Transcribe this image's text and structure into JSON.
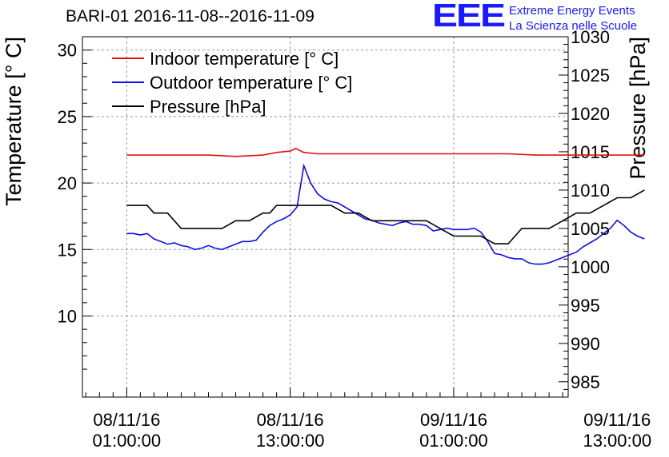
{
  "logo": {
    "mark": "EEE",
    "line1": "Extreme Energy Events",
    "line2": "La Scienza nelle Scuole"
  },
  "chart_data": {
    "type": "line",
    "title": "BARI-01 2016-11-08--2016-11-09",
    "ylabel": "Temperature [° C]",
    "y2label": "Pressure [hPa]",
    "ylim": [
      3.9,
      31.0
    ],
    "y2lim": [
      983.0,
      1030.0
    ],
    "xlim": [
      -3.25,
      32.4
    ],
    "xaxis_unit": "hours since 08/11/16 01:00:00",
    "yticks": [
      10,
      15,
      20,
      25,
      30
    ],
    "y2ticks": [
      985,
      990,
      995,
      1000,
      1005,
      1010,
      1015,
      1020,
      1025,
      1030
    ],
    "xticks": [
      {
        "x": 0,
        "line1": "08/11/16",
        "line2": "01:00:00"
      },
      {
        "x": 12,
        "line1": "08/11/16",
        "line2": "13:00:00"
      },
      {
        "x": 24,
        "line1": "09/11/16",
        "line2": "01:00:00"
      },
      {
        "x": 36,
        "line1": "09/11/16",
        "line2": "13:00:00"
      }
    ],
    "grid": true,
    "legend_position": "top-left",
    "series": [
      {
        "name": "Indoor temperature [° C]",
        "color": "#e01010",
        "axis": "left",
        "x": [
          0,
          2,
          4,
          6,
          8,
          10,
          11,
          12,
          12.4,
          13,
          14,
          16,
          18,
          20,
          22,
          24,
          26,
          28,
          30,
          32,
          34,
          36,
          38
        ],
        "y": [
          22.1,
          22.1,
          22.1,
          22.1,
          22.0,
          22.1,
          22.3,
          22.4,
          22.6,
          22.3,
          22.2,
          22.2,
          22.2,
          22.2,
          22.2,
          22.2,
          22.2,
          22.2,
          22.1,
          22.1,
          22.1,
          22.1,
          22.1
        ]
      },
      {
        "name": "Outdoor temperature [° C]",
        "color": "#1010e0",
        "axis": "left",
        "x": [
          0,
          0.5,
          1,
          1.5,
          2,
          2.5,
          3,
          3.5,
          4,
          4.5,
          5,
          5.5,
          6,
          6.5,
          7,
          7.5,
          8,
          8.5,
          9,
          9.5,
          10,
          10.5,
          11,
          11.5,
          12,
          12.5,
          13,
          13.5,
          14,
          14.5,
          15,
          15.5,
          16,
          16.5,
          17,
          17.5,
          18,
          18.5,
          19,
          19.5,
          20,
          20.5,
          21,
          21.5,
          22,
          22.5,
          23,
          23.5,
          24,
          24.5,
          25,
          25.5,
          26,
          26.5,
          27,
          27.5,
          28,
          28.5,
          29,
          29.5,
          30,
          30.5,
          31,
          31.5,
          32,
          32.5,
          33,
          33.5,
          34,
          34.5,
          35,
          35.5,
          36,
          36.5,
          37,
          37.5,
          38
        ],
        "y": [
          16.2,
          16.2,
          16.1,
          16.2,
          15.8,
          15.6,
          15.4,
          15.5,
          15.3,
          15.2,
          15.0,
          15.1,
          15.3,
          15.1,
          15.0,
          15.2,
          15.4,
          15.6,
          15.6,
          15.7,
          16.3,
          16.8,
          17.1,
          17.3,
          17.6,
          18.2,
          21.3,
          20.0,
          19.2,
          18.8,
          18.6,
          18.5,
          18.2,
          17.9,
          17.6,
          17.3,
          17.2,
          17.0,
          16.9,
          16.8,
          17.0,
          17.1,
          16.9,
          16.9,
          16.8,
          16.4,
          16.5,
          16.6,
          16.5,
          16.5,
          16.5,
          16.6,
          16.3,
          15.6,
          14.7,
          14.6,
          14.4,
          14.3,
          14.3,
          14.0,
          13.9,
          13.9,
          14.0,
          14.2,
          14.4,
          14.6,
          14.8,
          15.2,
          15.5,
          15.8,
          16.2,
          16.6,
          17.2,
          16.8,
          16.3,
          16.0,
          15.8
        ]
      },
      {
        "name": "Pressure [hPa]",
        "color": "#000000",
        "axis": "right",
        "x": [
          0,
          1.5,
          2,
          2.5,
          3,
          3.5,
          4,
          5.5,
          6,
          6.5,
          7,
          8,
          8.5,
          9,
          10,
          10.5,
          11,
          12,
          13,
          14,
          15,
          16,
          17,
          18,
          19,
          20,
          21,
          22,
          23,
          24,
          25,
          26,
          27,
          28,
          29,
          30,
          31,
          32,
          33,
          34,
          35,
          36,
          37,
          38
        ],
        "y": [
          1008,
          1008,
          1007,
          1007,
          1007,
          1006,
          1005,
          1005,
          1005,
          1005,
          1005,
          1006,
          1006,
          1006,
          1007,
          1007,
          1008,
          1008,
          1008,
          1008,
          1008,
          1007,
          1007,
          1006,
          1006,
          1006,
          1006,
          1006,
          1005,
          1004,
          1004,
          1004,
          1003,
          1003,
          1005,
          1005,
          1005,
          1006,
          1007,
          1007,
          1008,
          1009,
          1009,
          1010
        ]
      }
    ]
  }
}
